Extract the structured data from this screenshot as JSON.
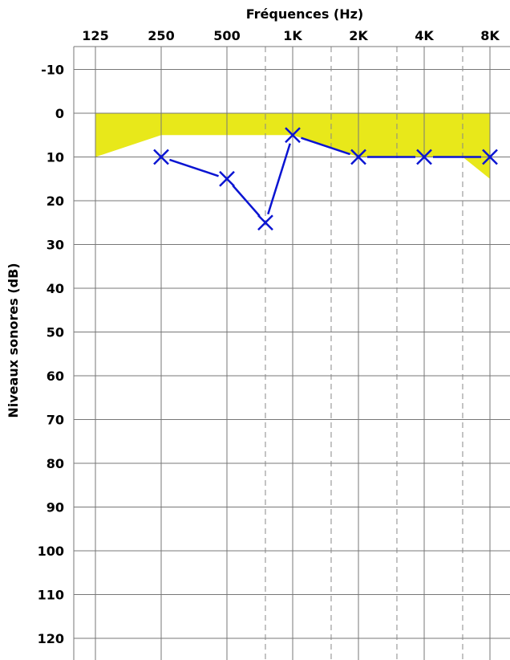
{
  "chart_data": {
    "type": "line",
    "xlabel": "Fréquences (Hz)",
    "ylabel": "Niveaux sonores (dB)",
    "x_ticks": [
      "125",
      "250",
      "500",
      "1K",
      "2K",
      "4K",
      "8K"
    ],
    "y_ticks": [
      "-10",
      "0",
      "10",
      "20",
      "30",
      "40",
      "50",
      "60",
      "70",
      "80",
      "90",
      "100",
      "110",
      "120"
    ],
    "ylim": [
      -15,
      125
    ],
    "y_inverted": true,
    "x_scale": "log2 (octaves)",
    "minor_x_gridlines": [
      "750",
      "1500",
      "3000",
      "6000"
    ],
    "grid": true,
    "fill_region": {
      "color": "#e8e81a",
      "upper": [
        [
          125,
          0
        ],
        [
          8000,
          0
        ]
      ],
      "lower": [
        [
          125,
          10
        ],
        [
          250,
          5
        ],
        [
          1000,
          5
        ],
        [
          2000,
          10
        ],
        [
          6000,
          10
        ],
        [
          8000,
          15
        ]
      ]
    },
    "series": [
      {
        "color": "#0a14d2",
        "marker": "x",
        "points": [
          [
            250,
            10
          ],
          [
            500,
            15
          ],
          [
            750,
            25
          ],
          [
            1000,
            5
          ],
          [
            2000,
            10
          ],
          [
            4000,
            10
          ],
          [
            8000,
            10
          ]
        ]
      }
    ]
  }
}
